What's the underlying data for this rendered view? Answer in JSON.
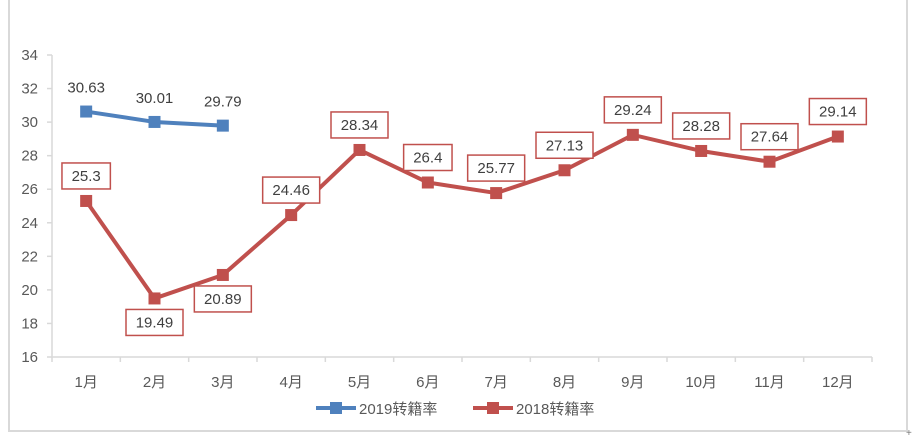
{
  "chart_data": {
    "type": "line",
    "title": "",
    "xlabel": "",
    "ylabel": "",
    "categories": [
      "1月",
      "2月",
      "3月",
      "4月",
      "5月",
      "6月",
      "7月",
      "8月",
      "9月",
      "10月",
      "11月",
      "12月"
    ],
    "ylim": [
      16,
      34
    ],
    "yticks": [
      16,
      18,
      20,
      22,
      24,
      26,
      28,
      30,
      32,
      34
    ],
    "grid": false,
    "legend_position": "bottom",
    "series": [
      {
        "name": "2019转籍率",
        "color": "#4f81bd",
        "values": [
          30.63,
          30.01,
          29.79,
          null,
          null,
          null,
          null,
          null,
          null,
          null,
          null,
          null
        ],
        "labels_boxed": false
      },
      {
        "name": "2018转籍率",
        "color": "#c0504d",
        "values": [
          25.3,
          19.49,
          20.89,
          24.46,
          28.34,
          26.4,
          25.77,
          27.13,
          29.24,
          28.28,
          27.64,
          29.14
        ],
        "labels_boxed": true
      }
    ]
  },
  "legend": {
    "items": [
      {
        "label": "2019转籍率",
        "color": "#4f81bd"
      },
      {
        "label": "2018转籍率",
        "color": "#c0504d"
      }
    ]
  },
  "corner_mark": "+"
}
